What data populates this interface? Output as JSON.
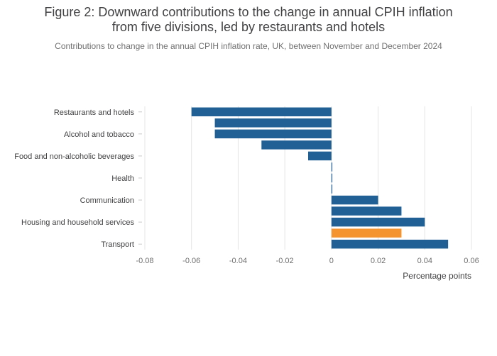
{
  "chart_data": {
    "type": "bar",
    "orientation": "horizontal",
    "title_line1": "Figure 2: Downward contributions to the change in annual CPIH inflation",
    "title_line2": "from five divisions, led by restaurants and hotels",
    "subtitle": "Contributions to change in the annual CPIH inflation rate, UK, between November and December 2024",
    "xlabel": "Percentage points",
    "xlim": [
      -0.08,
      0.06
    ],
    "xticks": [
      -0.08,
      -0.06,
      -0.04,
      -0.02,
      0,
      0.02,
      0.04,
      0.06
    ],
    "xtick_labels": [
      "-0.08",
      "-0.06",
      "-0.04",
      "-0.02",
      "0",
      "0.02",
      "0.04",
      "0.06"
    ],
    "grid": true,
    "bars": [
      {
        "label": "Restaurants and hotels",
        "value": -0.06,
        "color": "#206095"
      },
      {
        "label": "",
        "value": -0.05,
        "color": "#206095"
      },
      {
        "label": "Alcohol and tobacco",
        "value": -0.05,
        "color": "#206095"
      },
      {
        "label": "",
        "value": -0.03,
        "color": "#206095"
      },
      {
        "label": "Food and non-alcoholic beverages",
        "value": -0.01,
        "color": "#206095"
      },
      {
        "label": "",
        "value": 0,
        "color": "#206095"
      },
      {
        "label": "Health",
        "value": 0,
        "color": "#206095"
      },
      {
        "label": "",
        "value": 0,
        "color": "#206095"
      },
      {
        "label": "Communication",
        "value": 0.02,
        "color": "#206095"
      },
      {
        "label": "",
        "value": 0.03,
        "color": "#206095"
      },
      {
        "label": "Housing and household services",
        "value": 0.04,
        "color": "#206095"
      },
      {
        "label": "",
        "value": 0.03,
        "color": "#F39431"
      },
      {
        "label": "Transport",
        "value": 0.05,
        "color": "#206095"
      }
    ]
  }
}
